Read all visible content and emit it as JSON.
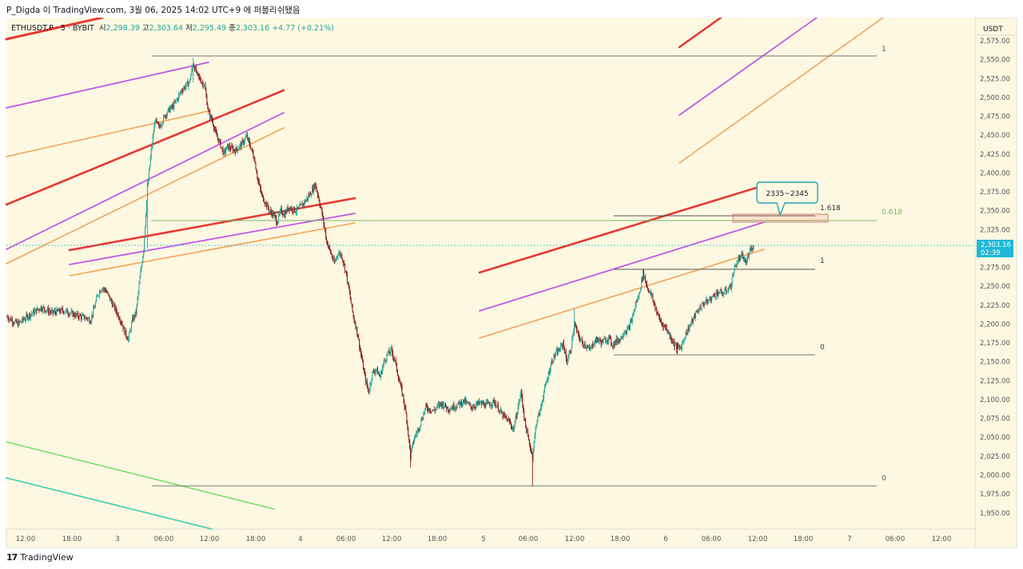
{
  "header": {
    "caption": "P_Digda 이 TradingView.com, 3월 06, 2025 14:02 UTC+9 에 퍼블리쉬됐음"
  },
  "legend": {
    "symbol": "ETHUSDT.P · 5 · BYBIT",
    "open_label": "시",
    "open": "2,298.39",
    "high_label": "고",
    "high": "2,303.64",
    "low_label": "저",
    "low": "2,295.49",
    "close_label": "종",
    "close": "2,303.16",
    "change": "+4.77 (+0.21%)"
  },
  "price_axis": {
    "currency": "USDT",
    "current_price": "2,303.16",
    "countdown": "02:39",
    "ticks": [
      "2,575.00",
      "2,550.00",
      "2,525.00",
      "2,500.00",
      "2,475.00",
      "2,450.00",
      "2,425.00",
      "2,400.00",
      "2,375.00",
      "2,350.00",
      "2,325.00",
      "2,300.00",
      "2,275.00",
      "2,250.00",
      "2,225.00",
      "2,200.00",
      "2,175.00",
      "2,150.00",
      "2,125.00",
      "2,100.00",
      "2,075.00",
      "2,050.00",
      "2,025.00",
      "2,000.00",
      "1,975.00",
      "1,950.00"
    ]
  },
  "time_axis": {
    "labels": [
      "12:00",
      "18:00",
      "3",
      "06:00",
      "12:00",
      "18:00",
      "4",
      "06:00",
      "12:00",
      "18:00",
      "5",
      "06:00",
      "12:00",
      "18:00",
      "6",
      "06:00",
      "12:00",
      "18:00",
      "7",
      "06:00",
      "12:00"
    ]
  },
  "fib_labels": {
    "big_top": "1",
    "big_mid": "0.618",
    "big_bottom": "0",
    "small_ext": "1.618",
    "small_top": "1",
    "small_bottom": "0"
  },
  "callout": {
    "text": "2335~2345"
  },
  "footer": {
    "brand": "TradingView"
  },
  "colors": {
    "background": "#fdf8e1",
    "up": "#26a69a",
    "down": "#8b1a1a",
    "red_channel": "#e53935",
    "purple_channel": "#c158e6",
    "orange_channel": "#f5a25a",
    "green_line": "#76e06a",
    "teal_line": "#3ccfb0",
    "fib_mid": "#7ab36a",
    "price_tag": "#1fb8d8"
  },
  "chart_data": {
    "type": "candlestick",
    "symbol": "ETHUSDT.P",
    "timeframe": "5",
    "exchange": "BYBIT",
    "ylim": [
      1937,
      2585
    ],
    "x_ticks": [
      "12:00",
      "18:00",
      "3",
      "06:00",
      "12:00",
      "18:00",
      "4",
      "06:00",
      "12:00",
      "18:00",
      "5",
      "06:00",
      "12:00",
      "18:00",
      "6",
      "06:00",
      "12:00",
      "18:00",
      "7",
      "06:00",
      "12:00"
    ],
    "price_path": [
      [
        0,
        2210
      ],
      [
        3,
        2200
      ],
      [
        6,
        2212
      ],
      [
        9,
        2222
      ],
      [
        12,
        2215
      ],
      [
        15,
        2218
      ],
      [
        18,
        2212
      ],
      [
        21,
        2208
      ],
      [
        22,
        2205
      ],
      [
        23,
        2220
      ],
      [
        24,
        2240
      ],
      [
        25,
        2248
      ],
      [
        26,
        2245
      ],
      [
        27,
        2235
      ],
      [
        28,
        2225
      ],
      [
        29,
        2215
      ],
      [
        30,
        2205
      ],
      [
        31,
        2190
      ],
      [
        32,
        2180
      ],
      [
        33,
        2205
      ],
      [
        34,
        2215
      ],
      [
        35,
        2260
      ],
      [
        36,
        2300
      ],
      [
        37,
        2380
      ],
      [
        38,
        2430
      ],
      [
        39,
        2470
      ],
      [
        40,
        2460
      ],
      [
        42,
        2480
      ],
      [
        44,
        2490
      ],
      [
        46,
        2510
      ],
      [
        48,
        2520
      ],
      [
        49,
        2545
      ],
      [
        50,
        2530
      ],
      [
        52,
        2515
      ],
      [
        53,
        2480
      ],
      [
        54,
        2470
      ],
      [
        55,
        2450
      ],
      [
        56,
        2440
      ],
      [
        57,
        2425
      ],
      [
        58,
        2435
      ],
      [
        60,
        2430
      ],
      [
        62,
        2440
      ],
      [
        63,
        2448
      ],
      [
        64,
        2435
      ],
      [
        65,
        2420
      ],
      [
        66,
        2390
      ],
      [
        67,
        2370
      ],
      [
        68,
        2360
      ],
      [
        69,
        2350
      ],
      [
        70,
        2345
      ],
      [
        71,
        2335
      ],
      [
        72,
        2350
      ],
      [
        73,
        2345
      ],
      [
        74,
        2355
      ],
      [
        76,
        2350
      ],
      [
        78,
        2360
      ],
      [
        80,
        2375
      ],
      [
        81,
        2385
      ],
      [
        82,
        2365
      ],
      [
        83,
        2340
      ],
      [
        84,
        2310
      ],
      [
        85,
        2295
      ],
      [
        86,
        2280
      ],
      [
        87,
        2295
      ],
      [
        88,
        2290
      ],
      [
        89,
        2270
      ],
      [
        90,
        2240
      ],
      [
        91,
        2210
      ],
      [
        92,
        2190
      ],
      [
        93,
        2160
      ],
      [
        94,
        2130
      ],
      [
        95,
        2110
      ],
      [
        96,
        2135
      ],
      [
        97,
        2140
      ],
      [
        98,
        2130
      ],
      [
        99,
        2150
      ],
      [
        100,
        2160
      ],
      [
        101,
        2165
      ],
      [
        102,
        2150
      ],
      [
        103,
        2125
      ],
      [
        104,
        2105
      ],
      [
        105,
        2075
      ],
      [
        106,
        2025
      ],
      [
        107,
        2050
      ],
      [
        108,
        2060
      ],
      [
        109,
        2075
      ],
      [
        110,
        2090
      ],
      [
        112,
        2085
      ],
      [
        114,
        2095
      ],
      [
        116,
        2088
      ],
      [
        118,
        2092
      ],
      [
        120,
        2098
      ],
      [
        122,
        2090
      ],
      [
        124,
        2095
      ],
      [
        126,
        2093
      ],
      [
        128,
        2097
      ],
      [
        130,
        2080
      ],
      [
        132,
        2070
      ],
      [
        133,
        2060
      ],
      [
        134,
        2085
      ],
      [
        135,
        2110
      ],
      [
        136,
        2070
      ],
      [
        137,
        2045
      ],
      [
        138,
        2025
      ],
      [
        139,
        2070
      ],
      [
        140,
        2085
      ],
      [
        141,
        2110
      ],
      [
        142,
        2130
      ],
      [
        143,
        2150
      ],
      [
        144,
        2160
      ],
      [
        145,
        2165
      ],
      [
        146,
        2175
      ],
      [
        147,
        2150
      ],
      [
        148,
        2165
      ],
      [
        149,
        2200
      ],
      [
        150,
        2185
      ],
      [
        151,
        2175
      ],
      [
        152,
        2172
      ],
      [
        153,
        2165
      ],
      [
        154,
        2175
      ],
      [
        155,
        2180
      ],
      [
        156,
        2176
      ],
      [
        157,
        2178
      ],
      [
        158,
        2182
      ],
      [
        159,
        2172
      ],
      [
        160,
        2178
      ],
      [
        161,
        2180
      ],
      [
        162,
        2190
      ],
      [
        163,
        2192
      ],
      [
        164,
        2205
      ],
      [
        165,
        2225
      ],
      [
        166,
        2240
      ],
      [
        167,
        2268
      ],
      [
        168,
        2250
      ],
      [
        169,
        2240
      ],
      [
        170,
        2225
      ],
      [
        171,
        2210
      ],
      [
        172,
        2200
      ],
      [
        173,
        2195
      ],
      [
        174,
        2185
      ],
      [
        175,
        2175
      ],
      [
        176,
        2168
      ],
      [
        177,
        2170
      ],
      [
        178,
        2185
      ],
      [
        179,
        2195
      ],
      [
        180,
        2205
      ],
      [
        181,
        2215
      ],
      [
        182,
        2222
      ],
      [
        183,
        2228
      ],
      [
        184,
        2230
      ],
      [
        185,
        2235
      ],
      [
        186,
        2240
      ],
      [
        187,
        2242
      ],
      [
        188,
        2240
      ],
      [
        189,
        2245
      ],
      [
        190,
        2250
      ],
      [
        191,
        2275
      ],
      [
        192,
        2285
      ],
      [
        193,
        2290
      ],
      [
        194,
        2280
      ],
      [
        195,
        2300
      ],
      [
        196,
        2303
      ]
    ]
  }
}
